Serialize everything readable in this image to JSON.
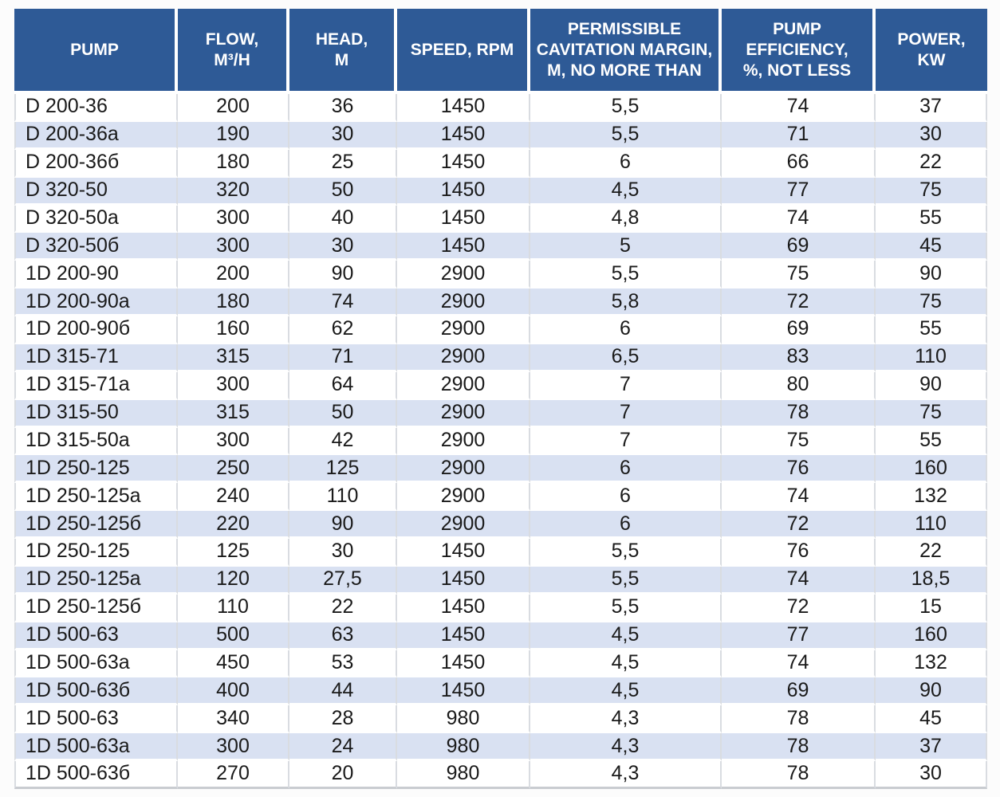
{
  "chart_data": {
    "type": "table",
    "columns": [
      {
        "key": "pump",
        "label": "PUMP"
      },
      {
        "key": "flow",
        "label": "FLOW,\nM³/H"
      },
      {
        "key": "head",
        "label": "HEAD,\nM"
      },
      {
        "key": "speed",
        "label": "SPEED, RPM"
      },
      {
        "key": "cavitation",
        "label": "PERMISSIBLE\nCAVITATION MARGIN,\nM, NO MORE THAN"
      },
      {
        "key": "efficiency",
        "label": "PUMP\nEFFICIENCY,\n%, NOT LESS"
      },
      {
        "key": "power",
        "label": "POWER,\nKW"
      }
    ],
    "rows": [
      [
        "D 200-36",
        "200",
        "36",
        "1450",
        "5,5",
        "74",
        "37"
      ],
      [
        "D 200-36a",
        "190",
        "30",
        "1450",
        "5,5",
        "71",
        "30"
      ],
      [
        "D 200-36б",
        "180",
        "25",
        "1450",
        "6",
        "66",
        "22"
      ],
      [
        "D 320-50",
        "320",
        "50",
        "1450",
        "4,5",
        "77",
        "75"
      ],
      [
        "D 320-50a",
        "300",
        "40",
        "1450",
        "4,8",
        "74",
        "55"
      ],
      [
        "D 320-50б",
        "300",
        "30",
        "1450",
        "5",
        "69",
        "45"
      ],
      [
        "1D 200-90",
        "200",
        "90",
        "2900",
        "5,5",
        "75",
        "90"
      ],
      [
        "1D 200-90a",
        "180",
        "74",
        "2900",
        "5,8",
        "72",
        "75"
      ],
      [
        "1D 200-90б",
        "160",
        "62",
        "2900",
        "6",
        "69",
        "55"
      ],
      [
        "1D 315-71",
        "315",
        "71",
        "2900",
        "6,5",
        "83",
        "110"
      ],
      [
        "1D 315-71a",
        "300",
        "64",
        "2900",
        "7",
        "80",
        "90"
      ],
      [
        "1D 315-50",
        "315",
        "50",
        "2900",
        "7",
        "78",
        "75"
      ],
      [
        "1D 315-50a",
        "300",
        "42",
        "2900",
        "7",
        "75",
        "55"
      ],
      [
        "1D 250-125",
        "250",
        "125",
        "2900",
        "6",
        "76",
        "160"
      ],
      [
        "1D 250-125a",
        "240",
        "110",
        "2900",
        "6",
        "74",
        "132"
      ],
      [
        "1D 250-125б",
        "220",
        "90",
        "2900",
        "6",
        "72",
        "110"
      ],
      [
        "1D 250-125",
        "125",
        "30",
        "1450",
        "5,5",
        "76",
        "22"
      ],
      [
        "1D 250-125a",
        "120",
        "27,5",
        "1450",
        "5,5",
        "74",
        "18,5"
      ],
      [
        "1D 250-125б",
        "110",
        "22",
        "1450",
        "5,5",
        "72",
        "15"
      ],
      [
        "1D 500-63",
        "500",
        "63",
        "1450",
        "4,5",
        "77",
        "160"
      ],
      [
        "1D 500-63a",
        "450",
        "53",
        "1450",
        "4,5",
        "74",
        "132"
      ],
      [
        "1D 500-63б",
        "400",
        "44",
        "1450",
        "4,5",
        "69",
        "90"
      ],
      [
        "1D 500-63",
        "340",
        "28",
        "980",
        "4,3",
        "78",
        "45"
      ],
      [
        "1D 500-63a",
        "300",
        "24",
        "980",
        "4,3",
        "78",
        "37"
      ],
      [
        "1D 500-63б",
        "270",
        "20",
        "980",
        "4,3",
        "78",
        "30"
      ]
    ]
  },
  "colors": {
    "header_bg": "#2E5A96",
    "header_text": "#FFFFFF",
    "stripe_bg": "#D9E1F2",
    "row_bg": "#FFFFFF",
    "text": "#1A1A1A",
    "grid_line": "#D9DCE1",
    "outer_line": "#C9CCD1"
  }
}
